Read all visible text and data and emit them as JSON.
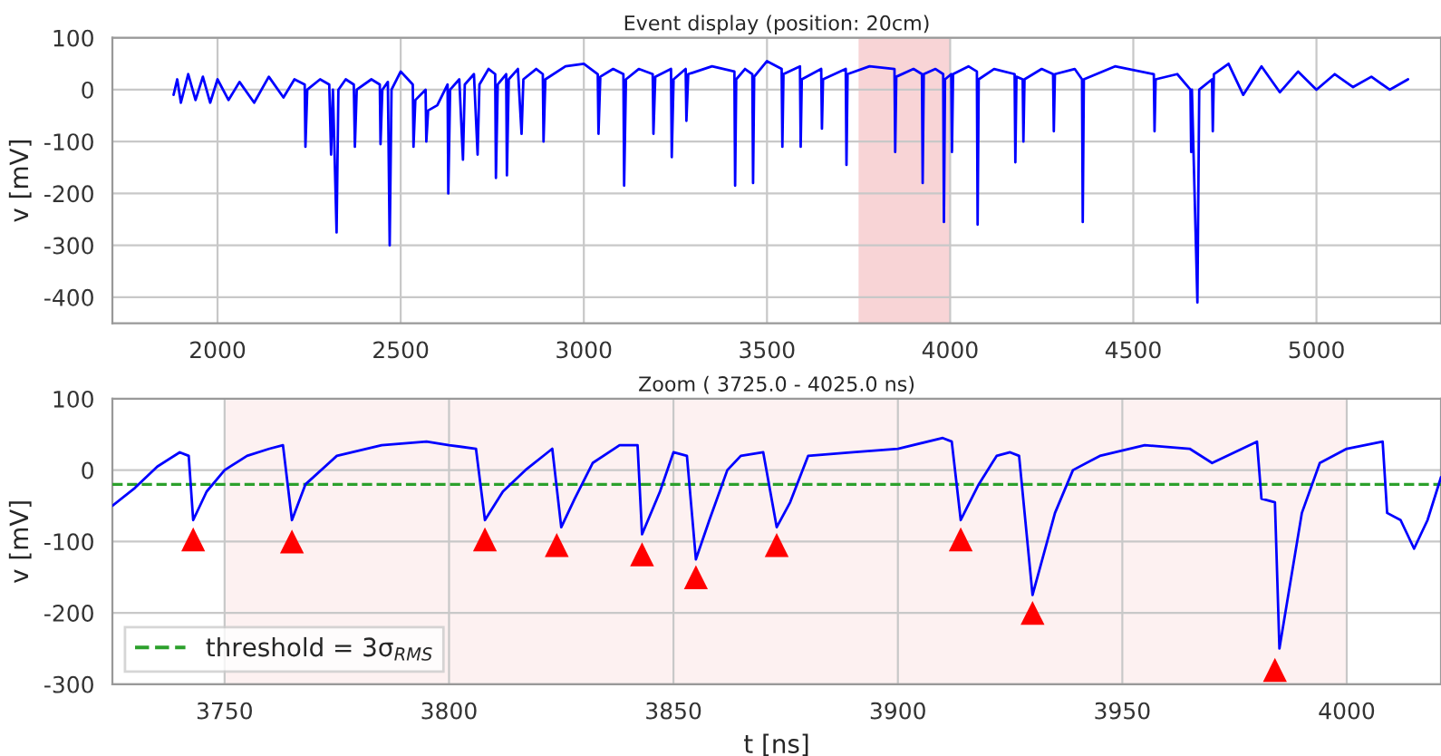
{
  "chart_data": [
    {
      "type": "line",
      "title": "Event display (position: 20cm)",
      "ylabel": "v [mV]",
      "xlim": [
        1713,
        5340
      ],
      "ylim": [
        -450,
        100
      ],
      "xticks": [
        2000,
        2500,
        3000,
        3500,
        4000,
        4500,
        5000
      ],
      "yticks": [
        -400,
        -300,
        -200,
        -100,
        0,
        100
      ],
      "grid": true,
      "bands": [
        {
          "axis": "x",
          "from": 3750,
          "to": 4000,
          "color": "#f8d4d6"
        }
      ],
      "series": [
        {
          "color": "#0000ff",
          "x": [
            1880,
            1890,
            1900,
            1920,
            1940,
            1960,
            1980,
            2000,
            2030,
            2060,
            2100,
            2140,
            2180,
            2210,
            2238,
            2240,
            2245,
            2280,
            2305,
            2310,
            2315,
            2325,
            2330,
            2350,
            2372,
            2375,
            2380,
            2420,
            2443,
            2445,
            2450,
            2465,
            2470,
            2475,
            2500,
            2520,
            2533,
            2535,
            2540,
            2568,
            2570,
            2575,
            2600,
            2628,
            2630,
            2635,
            2660,
            2670,
            2675,
            2700,
            2710,
            2715,
            2740,
            2758,
            2760,
            2765,
            2788,
            2790,
            2795,
            2820,
            2830,
            2835,
            2870,
            2888,
            2890,
            2895,
            2950,
            3000,
            3038,
            3040,
            3045,
            3080,
            3108,
            3110,
            3115,
            3150,
            3188,
            3190,
            3195,
            3238,
            3240,
            3245,
            3278,
            3280,
            3285,
            3350,
            3411,
            3413,
            3416,
            3440,
            3460,
            3462,
            3465,
            3500,
            3540,
            3542,
            3545,
            3590,
            3592,
            3595,
            3648,
            3650,
            3653,
            3715,
            3717,
            3720,
            3780,
            3848,
            3850,
            3853,
            3900,
            3923,
            3925,
            3928,
            3960,
            3981,
            3983,
            3986,
            4003,
            4005,
            4008,
            4050,
            4073,
            4075,
            4078,
            4120,
            4176,
            4178,
            4181,
            4198,
            4200,
            4203,
            4250,
            4281,
            4283,
            4286,
            4340,
            4360,
            4362,
            4365,
            4450,
            4556,
            4558,
            4561,
            4620,
            4656,
            4658,
            4660,
            4675,
            4680,
            4715,
            4717,
            4720,
            4760,
            4800,
            4850,
            4900,
            4950,
            5000,
            5050,
            5100,
            5150,
            5200,
            5250
          ],
          "values": [
            -10,
            20,
            -25,
            30,
            -20,
            25,
            -25,
            20,
            -20,
            15,
            -25,
            25,
            -15,
            20,
            10,
            -110,
            0,
            20,
            10,
            -125,
            0,
            -275,
            0,
            20,
            10,
            -110,
            0,
            20,
            10,
            -105,
            0,
            15,
            -300,
            0,
            35,
            20,
            10,
            -110,
            -20,
            0,
            -100,
            -40,
            -30,
            10,
            -200,
            0,
            20,
            -135,
            10,
            30,
            -125,
            10,
            40,
            30,
            -170,
            10,
            30,
            -165,
            20,
            40,
            -85,
            20,
            40,
            30,
            -100,
            20,
            45,
            50,
            30,
            -85,
            25,
            40,
            30,
            -185,
            20,
            40,
            30,
            -85,
            25,
            40,
            -130,
            20,
            40,
            -60,
            30,
            45,
            35,
            -185,
            20,
            40,
            30,
            -180,
            25,
            55,
            40,
            -110,
            30,
            45,
            -110,
            20,
            40,
            -75,
            20,
            40,
            -145,
            30,
            45,
            40,
            -120,
            25,
            40,
            30,
            -180,
            30,
            40,
            30,
            -255,
            20,
            30,
            -120,
            30,
            45,
            35,
            -260,
            20,
            40,
            30,
            -140,
            25,
            20,
            -100,
            20,
            40,
            30,
            -80,
            30,
            40,
            20,
            -255,
            20,
            45,
            30,
            -80,
            20,
            30,
            0,
            -120,
            0,
            -410,
            0,
            20,
            -80,
            30,
            50,
            -10,
            45,
            -5,
            35,
            0,
            30,
            5,
            25,
            0,
            20
          ]
        }
      ]
    },
    {
      "type": "line",
      "title": "Zoom ( 3725.0 - 4025.0 ns)",
      "xlabel": "t [ns]",
      "ylabel": "v [mV]",
      "xlim": [
        3725,
        4021
      ],
      "ylim": [
        -300,
        100
      ],
      "xticks": [
        3750,
        3800,
        3850,
        3900,
        3950,
        4000
      ],
      "yticks": [
        -300,
        -200,
        -100,
        0,
        100
      ],
      "grid": true,
      "legend": "bottom left",
      "bands": [
        {
          "axis": "x",
          "from": 3750,
          "to": 4000,
          "color": "#fdf1f1"
        }
      ],
      "series": [
        {
          "type": "line",
          "name": "threshold = 3σ$_{RMS}$",
          "color": "#2ca02c",
          "line_style": "dashed",
          "x": [
            3725,
            4021
          ],
          "values": [
            -20,
            -20
          ]
        },
        {
          "color": "#0000ff",
          "x": [
            3725,
            3730,
            3735,
            3740,
            3742,
            3743,
            3746,
            3750,
            3755,
            3760,
            3763,
            3765,
            3768,
            3775,
            3785,
            3795,
            3800,
            3806,
            3808,
            3812,
            3817,
            3822,
            3823,
            3825,
            3828,
            3832,
            3838,
            3842,
            3843,
            3847,
            3850,
            3853,
            3855,
            3858,
            3862,
            3865,
            3870,
            3873,
            3876,
            3880,
            3890,
            3900,
            3910,
            3912,
            3914,
            3918,
            3922,
            3925,
            3927,
            3930,
            3935,
            3939,
            3945,
            3955,
            3965,
            3970,
            3975,
            3980,
            3981,
            3984,
            3985,
            3990,
            3994,
            4000,
            4008,
            4009,
            4012,
            4015,
            4018,
            4021
          ],
          "values": [
            -50,
            -25,
            5,
            25,
            20,
            -70,
            -30,
            0,
            20,
            30,
            35,
            -70,
            -20,
            20,
            35,
            40,
            35,
            30,
            -70,
            -30,
            0,
            25,
            30,
            -80,
            -40,
            10,
            35,
            35,
            -90,
            -30,
            25,
            20,
            -125,
            -70,
            0,
            20,
            25,
            -80,
            -45,
            20,
            25,
            30,
            45,
            40,
            -70,
            -20,
            20,
            25,
            20,
            -175,
            -60,
            0,
            20,
            35,
            30,
            10,
            25,
            40,
            -40,
            -45,
            -250,
            -60,
            10,
            30,
            40,
            -60,
            -70,
            -110,
            -70,
            -10
          ]
        },
        {
          "type": "scatter",
          "color": "#ff0000",
          "marker": "triangle",
          "x": [
            3743,
            3765,
            3808,
            3824,
            3843,
            3855,
            3873,
            3914,
            3930,
            3984
          ],
          "values": [
            -97,
            -100,
            -97,
            -105,
            -118,
            -150,
            -105,
            -97,
            -200,
            -280
          ]
        }
      ]
    }
  ]
}
